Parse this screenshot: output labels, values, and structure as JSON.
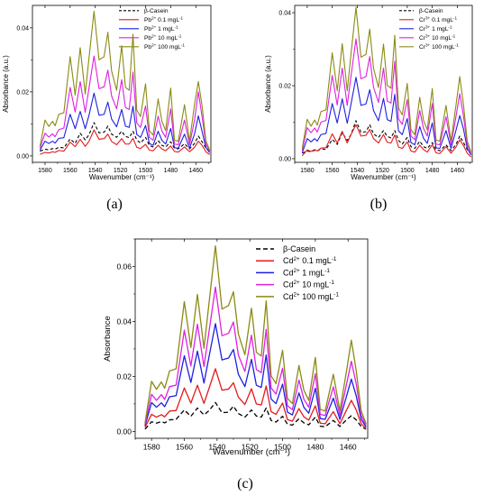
{
  "labels": {
    "a": "(a)",
    "b": "(b)",
    "c": "(c)"
  },
  "chart_data": [
    {
      "panel": "a",
      "type": "line",
      "xlabel": "Wavenumber (cm⁻¹)",
      "ylabel": "Absorbance (a.u.)",
      "xlim": [
        1590,
        1448
      ],
      "x_reversed": true,
      "ylim": [
        -0.002,
        0.047
      ],
      "xticks": [
        1580,
        1560,
        1540,
        1520,
        1500,
        1480,
        1460
      ],
      "yticks": [
        0.0,
        0.02,
        0.04
      ],
      "ytick_labels": [
        "0.00",
        "0.02",
        "0.04"
      ],
      "legend_position": "top-right",
      "x": [
        1584,
        1580,
        1577,
        1574,
        1572,
        1569,
        1565,
        1560,
        1556,
        1552,
        1548,
        1545,
        1541,
        1537,
        1533,
        1530,
        1527,
        1523,
        1519,
        1516,
        1513,
        1510,
        1507,
        1504,
        1500,
        1497,
        1494,
        1490,
        1487,
        1484,
        1480,
        1477,
        1474,
        1469,
        1465,
        1461,
        1458,
        1455,
        1452,
        1449
      ],
      "series": [
        {
          "name": "β-Casein",
          "ion": "",
          "sup": "",
          "conc": "",
          "color": "#000000",
          "dashed": true,
          "values": [
            0.0015,
            0.0021,
            0.0019,
            0.0023,
            0.0021,
            0.0027,
            0.0025,
            0.0053,
            0.0039,
            0.0071,
            0.005,
            0.0066,
            0.0104,
            0.0072,
            0.0074,
            0.0093,
            0.0068,
            0.0058,
            0.0077,
            0.0061,
            0.0057,
            0.0077,
            0.005,
            0.004,
            0.0058,
            0.0033,
            0.0028,
            0.0048,
            0.0033,
            0.0028,
            0.0044,
            0.0024,
            0.0022,
            0.0038,
            0.0022,
            0.0039,
            0.0062,
            0.0044,
            0.0025,
            0.0014
          ]
        },
        {
          "name": "Pb2+ 0.1 mgL-1",
          "ion": "Pb",
          "sup": "2+",
          "conc": " 0.1 mgL",
          "color": "#e41a1c",
          "dashed": false,
          "values": [
            0.0005,
            0.0011,
            0.0009,
            0.0013,
            0.0011,
            0.0017,
            0.0015,
            0.0043,
            0.0029,
            0.0052,
            0.003,
            0.0046,
            0.0081,
            0.0052,
            0.0054,
            0.0068,
            0.0045,
            0.0035,
            0.0054,
            0.0037,
            0.0037,
            0.0055,
            0.0027,
            0.0023,
            0.0036,
            0.0018,
            0.0016,
            0.0033,
            0.0022,
            0.0016,
            0.0031,
            0.0014,
            0.0012,
            0.0028,
            0.0013,
            0.0027,
            0.0046,
            0.0033,
            0.0013,
            0.0004
          ]
        },
        {
          "name": "Pb2+ 1 mgL-1",
          "ion": "Pb",
          "sup": "2+",
          "conc": " 1 mgL",
          "color": "#1f1fe0",
          "dashed": false,
          "values": [
            0.0018,
            0.0046,
            0.0039,
            0.0046,
            0.004,
            0.0055,
            0.0057,
            0.013,
            0.0085,
            0.0139,
            0.0085,
            0.0127,
            0.0196,
            0.0127,
            0.013,
            0.0168,
            0.0115,
            0.0091,
            0.0145,
            0.0093,
            0.0089,
            0.0155,
            0.0067,
            0.0058,
            0.0095,
            0.0039,
            0.0033,
            0.0077,
            0.0049,
            0.0037,
            0.0086,
            0.0026,
            0.0024,
            0.0068,
            0.0024,
            0.0069,
            0.0125,
            0.0076,
            0.0026,
            0.001
          ]
        },
        {
          "name": "Pb2+ 10 mgL-1",
          "ion": "Pb",
          "sup": "2+",
          "conc": " 10 mgL",
          "color": "#e020e0",
          "dashed": false,
          "values": [
            0.0024,
            0.0071,
            0.0059,
            0.0069,
            0.006,
            0.0082,
            0.0087,
            0.0214,
            0.0137,
            0.0232,
            0.0136,
            0.0212,
            0.0312,
            0.021,
            0.0216,
            0.0268,
            0.0187,
            0.0147,
            0.0238,
            0.0151,
            0.0145,
            0.0262,
            0.0103,
            0.0089,
            0.0156,
            0.0058,
            0.0049,
            0.0124,
            0.0078,
            0.0058,
            0.0147,
            0.0037,
            0.0035,
            0.0112,
            0.0035,
            0.0112,
            0.02,
            0.0122,
            0.0037,
            0.0014
          ]
        },
        {
          "name": "Pb2+ 100 mgL-1",
          "ion": "Pb",
          "sup": "2+",
          "conc": " 100 mgL",
          "color": "#8a8a14",
          "dashed": false,
          "values": [
            0.003,
            0.0112,
            0.0092,
            0.0108,
            0.0094,
            0.013,
            0.0135,
            0.031,
            0.019,
            0.0338,
            0.0193,
            0.0306,
            0.0452,
            0.03,
            0.031,
            0.0386,
            0.0265,
            0.0205,
            0.0344,
            0.0214,
            0.0205,
            0.038,
            0.0143,
            0.0123,
            0.0225,
            0.0079,
            0.0065,
            0.0178,
            0.0108,
            0.0079,
            0.0212,
            0.0049,
            0.0046,
            0.016,
            0.0046,
            0.0161,
            0.0232,
            0.0156,
            0.0048,
            0.0018
          ]
        }
      ]
    },
    {
      "panel": "b",
      "type": "line",
      "xlabel": "Wavenumber (cm⁻¹)",
      "ylabel": "Absorbance (a.u.)",
      "xlim": [
        1590,
        1448
      ],
      "x_reversed": true,
      "ylim": [
        -0.001,
        0.042
      ],
      "xticks": [
        1580,
        1560,
        1540,
        1520,
        1500,
        1480,
        1460
      ],
      "yticks": [
        0.0,
        0.02,
        0.04
      ],
      "ytick_labels": [
        "0.00",
        "0.02",
        "0.04"
      ],
      "legend_position": "top-right",
      "x": [
        1584,
        1580,
        1577,
        1574,
        1572,
        1569,
        1565,
        1560,
        1556,
        1552,
        1548,
        1545,
        1541,
        1537,
        1533,
        1530,
        1527,
        1523,
        1519,
        1516,
        1513,
        1510,
        1507,
        1504,
        1500,
        1497,
        1494,
        1490,
        1487,
        1484,
        1480,
        1477,
        1474,
        1469,
        1465,
        1461,
        1458,
        1455,
        1452,
        1449
      ],
      "series": [
        {
          "name": "β-Casein",
          "ion": "",
          "sup": "",
          "conc": "",
          "color": "#000000",
          "dashed": true,
          "values": [
            0.0015,
            0.0021,
            0.0019,
            0.0023,
            0.0021,
            0.0027,
            0.0025,
            0.0053,
            0.0039,
            0.0071,
            0.005,
            0.0066,
            0.0104,
            0.0072,
            0.0074,
            0.0093,
            0.0068,
            0.0058,
            0.0077,
            0.0061,
            0.0057,
            0.0077,
            0.005,
            0.004,
            0.0058,
            0.0033,
            0.0028,
            0.0048,
            0.0033,
            0.0028,
            0.0044,
            0.0024,
            0.0022,
            0.0038,
            0.0022,
            0.0039,
            0.0062,
            0.0044,
            0.0025,
            0.0014
          ]
        },
        {
          "name": "Cr3+ 0.1 mgL-1",
          "ion": "Cr",
          "sup": "3+",
          "conc": " 0.1 mgL",
          "color": "#e41a1c",
          "dashed": false,
          "values": [
            0.0008,
            0.0024,
            0.002,
            0.0025,
            0.0021,
            0.0029,
            0.003,
            0.0068,
            0.0043,
            0.0075,
            0.0043,
            0.0066,
            0.0093,
            0.0062,
            0.0064,
            0.008,
            0.0055,
            0.0043,
            0.0066,
            0.0045,
            0.0043,
            0.0065,
            0.0032,
            0.0028,
            0.0046,
            0.0021,
            0.0018,
            0.0037,
            0.0025,
            0.0018,
            0.0038,
            0.0016,
            0.0014,
            0.0033,
            0.0015,
            0.0032,
            0.0052,
            0.0036,
            0.0015,
            0.0005
          ]
        },
        {
          "name": "Cr3+ 1 mgL-1",
          "ion": "Cr",
          "sup": "3+",
          "conc": " 1 mgL",
          "color": "#1f1fe0",
          "dashed": false,
          "values": [
            0.0016,
            0.0055,
            0.0046,
            0.0055,
            0.0048,
            0.0066,
            0.0069,
            0.0151,
            0.0098,
            0.0164,
            0.0097,
            0.0149,
            0.0223,
            0.0146,
            0.015,
            0.0189,
            0.0132,
            0.0104,
            0.0165,
            0.0107,
            0.0102,
            0.0176,
            0.0076,
            0.0066,
            0.011,
            0.0044,
            0.0038,
            0.0088,
            0.0056,
            0.0042,
            0.0098,
            0.003,
            0.0028,
            0.0077,
            0.0028,
            0.0078,
            0.0118,
            0.0081,
            0.0028,
            0.001
          ]
        },
        {
          "name": "Cr3+ 10 mgL-1",
          "ion": "Cr",
          "sup": "3+",
          "conc": " 10 mgL",
          "color": "#e020e0",
          "dashed": false,
          "values": [
            0.0022,
            0.0085,
            0.0071,
            0.0084,
            0.0073,
            0.01,
            0.0105,
            0.0228,
            0.0147,
            0.0248,
            0.0146,
            0.0226,
            0.0328,
            0.0219,
            0.0225,
            0.028,
            0.0196,
            0.0154,
            0.0248,
            0.0158,
            0.0152,
            0.0267,
            0.0109,
            0.0094,
            0.0162,
            0.0062,
            0.0052,
            0.0132,
            0.0083,
            0.0062,
            0.0151,
            0.004,
            0.0038,
            0.0115,
            0.0038,
            0.0116,
            0.0178,
            0.0116,
            0.0038,
            0.0014
          ]
        },
        {
          "name": "Cr3+ 100 mgL-1",
          "ion": "Cr",
          "sup": "3+",
          "conc": " 100 mgL",
          "color": "#8a8a14",
          "dashed": false,
          "values": [
            0.0028,
            0.0108,
            0.0089,
            0.0106,
            0.0092,
            0.0129,
            0.0134,
            0.029,
            0.0186,
            0.0315,
            0.0186,
            0.0286,
            0.0415,
            0.0278,
            0.0286,
            0.0355,
            0.0248,
            0.0195,
            0.0314,
            0.0201,
            0.0193,
            0.0338,
            0.0139,
            0.012,
            0.0206,
            0.0079,
            0.0066,
            0.0168,
            0.0105,
            0.0079,
            0.0192,
            0.0051,
            0.0048,
            0.0146,
            0.0048,
            0.0147,
            0.0225,
            0.0147,
            0.0048,
            0.0018
          ]
        }
      ]
    },
    {
      "panel": "c",
      "type": "line",
      "xlabel": "Wavenumber (cm⁻¹)",
      "ylabel": "Absorbance",
      "xlim": [
        1590,
        1448
      ],
      "x_reversed": true,
      "ylim": [
        -0.0025,
        0.07
      ],
      "xticks": [
        1580,
        1560,
        1540,
        1520,
        1500,
        1480,
        1460
      ],
      "yticks": [
        0.0,
        0.02,
        0.04,
        0.06
      ],
      "ytick_labels": [
        "0.00",
        "0.02",
        "0.04",
        "0.06"
      ],
      "legend_position": "top-right",
      "x": [
        1584,
        1580,
        1577,
        1574,
        1572,
        1569,
        1565,
        1560,
        1556,
        1552,
        1548,
        1545,
        1541,
        1537,
        1533,
        1530,
        1527,
        1523,
        1519,
        1516,
        1513,
        1510,
        1507,
        1504,
        1500,
        1497,
        1494,
        1490,
        1487,
        1484,
        1480,
        1477,
        1474,
        1469,
        1465,
        1461,
        1458,
        1455,
        1452,
        1449
      ],
      "series": [
        {
          "name": "β-Casein",
          "ion": "",
          "sup": "",
          "conc": "",
          "color": "#000000",
          "dashed": true,
          "values": [
            0.0008,
            0.0035,
            0.003,
            0.0036,
            0.0031,
            0.0042,
            0.0044,
            0.0078,
            0.0055,
            0.0085,
            0.006,
            0.0075,
            0.0105,
            0.0068,
            0.007,
            0.0092,
            0.0065,
            0.0052,
            0.0078,
            0.0056,
            0.0052,
            0.0085,
            0.004,
            0.0034,
            0.0055,
            0.0026,
            0.0023,
            0.0046,
            0.0031,
            0.0024,
            0.0052,
            0.0019,
            0.0017,
            0.004,
            0.0018,
            0.0042,
            0.0057,
            0.0042,
            0.0018,
            0.0008
          ]
        },
        {
          "name": "Cd2+ 0.1 mgL-1",
          "ion": "Cd",
          "sup": "2+",
          "conc": " 0.1 mgL",
          "color": "#e41a1c",
          "dashed": false,
          "values": [
            0.0015,
            0.0062,
            0.0052,
            0.0061,
            0.0053,
            0.0074,
            0.0076,
            0.0158,
            0.0103,
            0.0168,
            0.0102,
            0.0155,
            0.0228,
            0.015,
            0.0154,
            0.0177,
            0.0125,
            0.0098,
            0.0155,
            0.01,
            0.0096,
            0.0165,
            0.0072,
            0.0062,
            0.0103,
            0.0043,
            0.0037,
            0.0083,
            0.0053,
            0.0041,
            0.0093,
            0.003,
            0.0028,
            0.0072,
            0.0028,
            0.0077,
            0.0113,
            0.0078,
            0.0028,
            0.001
          ]
        },
        {
          "name": "Cd2+ 1 mgL-1",
          "ion": "Cd",
          "sup": "2+",
          "conc": " 1 mgL",
          "color": "#1f1fe0",
          "dashed": false,
          "values": [
            0.002,
            0.0105,
            0.0088,
            0.0104,
            0.009,
            0.0126,
            0.013,
            0.0275,
            0.0178,
            0.0292,
            0.0176,
            0.0269,
            0.0392,
            0.026,
            0.0267,
            0.0298,
            0.0208,
            0.0163,
            0.0262,
            0.0168,
            0.016,
            0.0278,
            0.0118,
            0.0101,
            0.0172,
            0.007,
            0.006,
            0.014,
            0.0088,
            0.0066,
            0.0157,
            0.0047,
            0.0044,
            0.0121,
            0.0044,
            0.0127,
            0.019,
            0.0129,
            0.0044,
            0.0016
          ]
        },
        {
          "name": "Cd2+ 10 mgL-1",
          "ion": "Cd",
          "sup": "2+",
          "conc": " 10 mgL",
          "color": "#e020e0",
          "dashed": false,
          "values": [
            0.0025,
            0.0135,
            0.0113,
            0.0134,
            0.0116,
            0.0163,
            0.0168,
            0.0368,
            0.0238,
            0.039,
            0.0236,
            0.036,
            0.0525,
            0.0348,
            0.0357,
            0.0398,
            0.0278,
            0.0218,
            0.035,
            0.0225,
            0.0214,
            0.0371,
            0.0158,
            0.0136,
            0.023,
            0.0093,
            0.0079,
            0.0187,
            0.0117,
            0.0088,
            0.021,
            0.0062,
            0.0058,
            0.0162,
            0.0058,
            0.017,
            0.0255,
            0.0172,
            0.0058,
            0.0022
          ]
        },
        {
          "name": "Cd2+ 100 mgL-1",
          "ion": "Cd",
          "sup": "2+",
          "conc": " 100 mgL",
          "color": "#8a8a14",
          "dashed": false,
          "values": [
            0.003,
            0.0182,
            0.0153,
            0.018,
            0.0157,
            0.022,
            0.0228,
            0.0472,
            0.0305,
            0.0498,
            0.0302,
            0.0462,
            0.0675,
            0.0445,
            0.0458,
            0.0508,
            0.0355,
            0.0279,
            0.0448,
            0.0288,
            0.0274,
            0.0475,
            0.0202,
            0.0174,
            0.0295,
            0.012,
            0.0101,
            0.024,
            0.015,
            0.0113,
            0.0269,
            0.008,
            0.0074,
            0.0208,
            0.0075,
            0.0218,
            0.0332,
            0.022,
            0.0075,
            0.0028
          ]
        }
      ]
    }
  ]
}
